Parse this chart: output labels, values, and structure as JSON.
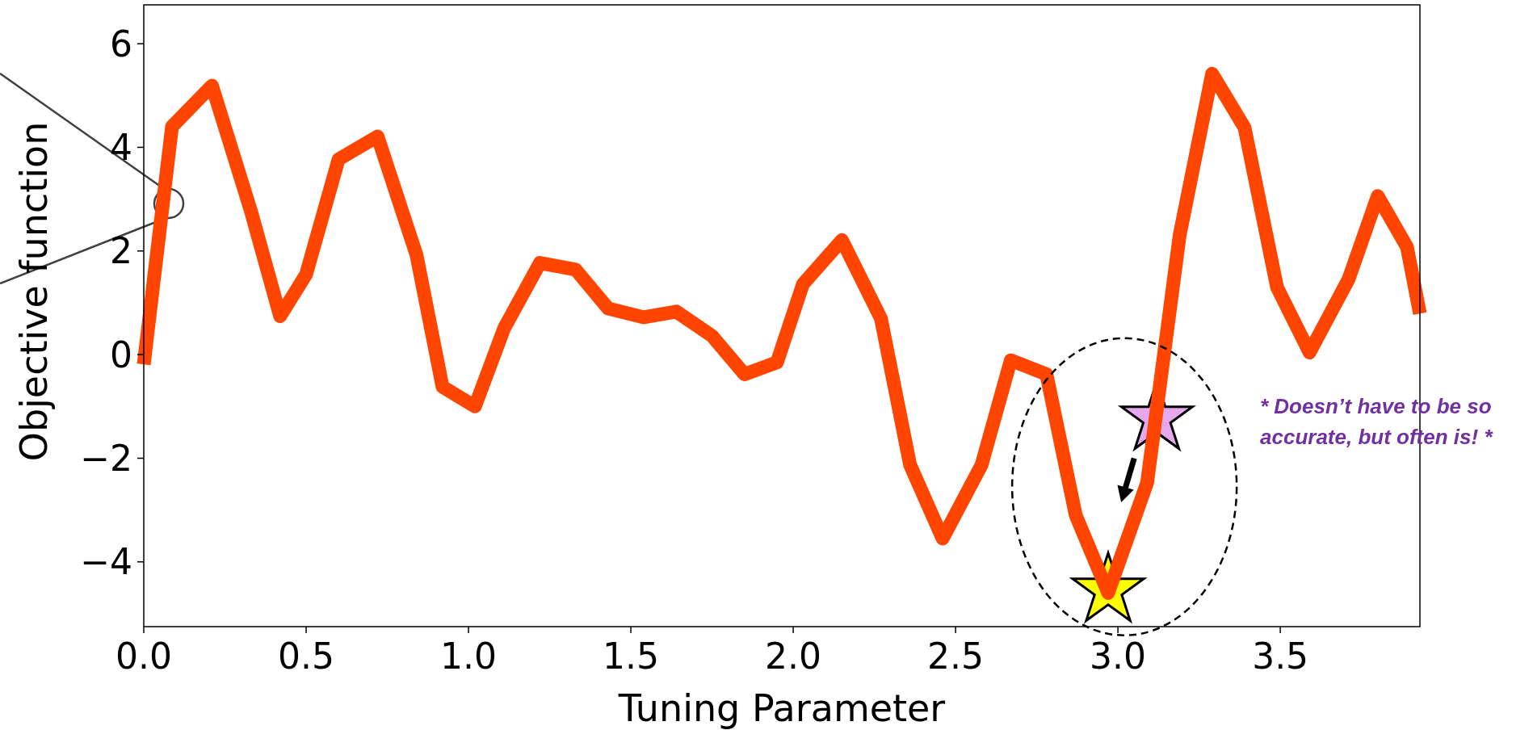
{
  "chart_data": {
    "type": "line",
    "xlabel": "Tuning Parameter",
    "ylabel": "Objective function",
    "xlim": [
      0,
      3.93
    ],
    "ylim": [
      -5.25,
      6.75
    ],
    "xticks": [
      {
        "value": 0,
        "label": "0.0"
      },
      0.5,
      {
        "value": 1,
        "label": "1.0"
      },
      1.5,
      {
        "value": 2,
        "label": "2.0"
      },
      2.5,
      {
        "value": 3,
        "label": "3.0"
      },
      3.5
    ],
    "yticks": [
      {
        "value": -4,
        "label": "−4"
      },
      {
        "value": -2,
        "label": "−2"
      },
      0,
      2,
      4,
      6
    ],
    "grid": false,
    "series": [
      {
        "color": "#ff4500",
        "x": [
          0,
          0.087,
          0.21,
          0.33,
          0.42,
          0.5,
          0.6,
          0.72,
          0.84,
          0.92,
          1.02,
          1.11,
          1.22,
          1.33,
          1.43,
          1.54,
          1.64,
          1.75,
          1.85,
          1.95,
          2.03,
          2.15,
          2.27,
          2.36,
          2.46,
          2.58,
          2.67,
          2.78,
          2.87,
          2.97,
          3.09,
          3.19,
          3.29,
          3.39,
          3.49,
          3.59,
          3.71,
          3.8,
          3.89,
          3.93
        ],
        "values": [
          -0.19,
          4.4,
          5.19,
          2.77,
          0.74,
          1.55,
          3.77,
          4.21,
          1.92,
          -0.62,
          -1.0,
          0.51,
          1.77,
          1.64,
          0.89,
          0.72,
          0.83,
          0.36,
          -0.38,
          -0.15,
          1.36,
          2.21,
          0.7,
          -2.13,
          -3.55,
          -2.13,
          -0.11,
          -0.38,
          -3.1,
          -4.6,
          -2.47,
          2.3,
          5.42,
          4.38,
          1.3,
          0.04,
          1.45,
          3.06,
          2.08,
          0.79
        ]
      },
      {
        "type": "scatter",
        "marker": "star",
        "color": "#e6a8ec",
        "x": [
          3.12
        ],
        "values": [
          -1.23
        ]
      },
      {
        "type": "scatter",
        "marker": "star",
        "color": "#ffff00",
        "x": [
          2.97
        ],
        "values": [
          -4.55
        ]
      }
    ],
    "annotations": [
      "* Doesn’t have to be so accurate, but often is! *"
    ]
  }
}
